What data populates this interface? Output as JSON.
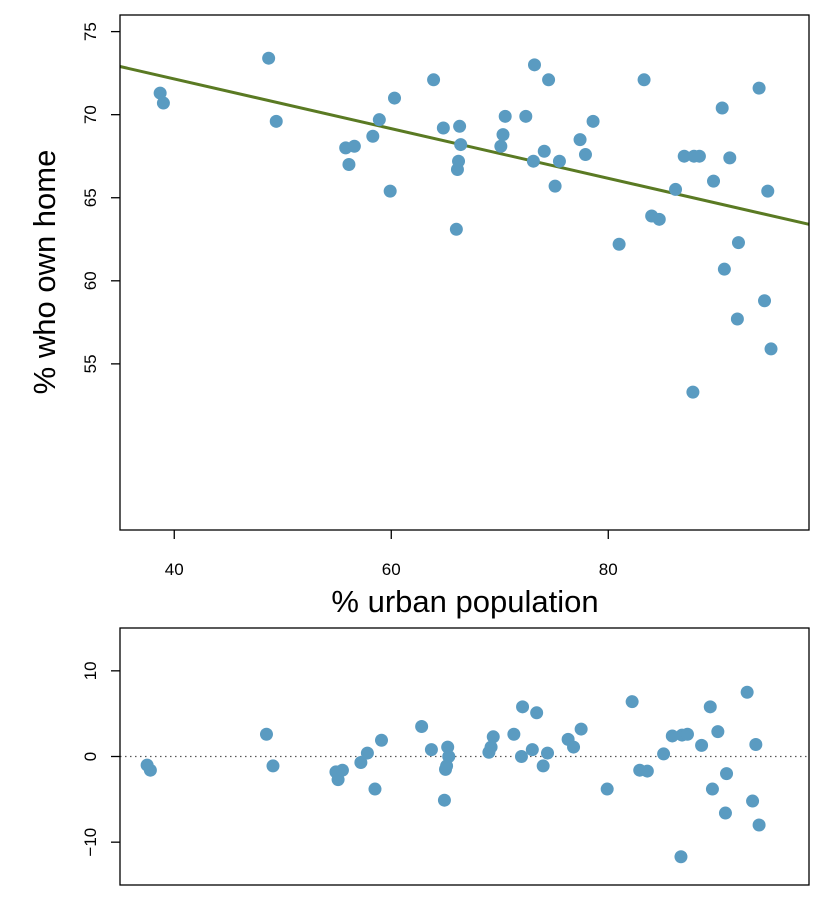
{
  "chart_data": [
    {
      "type": "scatter",
      "title": "",
      "xlabel": "% urban population",
      "ylabel": "% who own home",
      "xlim": [
        35,
        98.5
      ],
      "ylim": [
        45,
        76
      ],
      "xticks": [
        "40",
        "60",
        "80"
      ],
      "yticks": [
        "55",
        "60",
        "65",
        "70",
        "75"
      ],
      "grid": false,
      "colors": {
        "points": "#5a9bc1",
        "fit_line": "#5a7a23",
        "axes": "#000000"
      },
      "fit_line": {
        "x": [
          35,
          98.5
        ],
        "y": [
          72.9,
          63.4
        ]
      },
      "points": [
        {
          "x": 38.7,
          "y": 71.3
        },
        {
          "x": 39.0,
          "y": 70.7
        },
        {
          "x": 48.7,
          "y": 73.4
        },
        {
          "x": 49.4,
          "y": 69.6
        },
        {
          "x": 55.8,
          "y": 68.0
        },
        {
          "x": 56.1,
          "y": 67.0
        },
        {
          "x": 56.6,
          "y": 68.1
        },
        {
          "x": 58.3,
          "y": 68.7
        },
        {
          "x": 58.9,
          "y": 69.7
        },
        {
          "x": 59.9,
          "y": 65.4
        },
        {
          "x": 60.3,
          "y": 71.0
        },
        {
          "x": 63.9,
          "y": 72.1
        },
        {
          "x": 64.8,
          "y": 69.2
        },
        {
          "x": 66.0,
          "y": 63.1
        },
        {
          "x": 66.1,
          "y": 66.7
        },
        {
          "x": 66.2,
          "y": 67.2
        },
        {
          "x": 66.3,
          "y": 69.3
        },
        {
          "x": 66.4,
          "y": 68.2
        },
        {
          "x": 70.1,
          "y": 68.1
        },
        {
          "x": 70.3,
          "y": 68.8
        },
        {
          "x": 70.5,
          "y": 69.9
        },
        {
          "x": 72.4,
          "y": 69.9
        },
        {
          "x": 73.1,
          "y": 67.2
        },
        {
          "x": 73.2,
          "y": 73.0
        },
        {
          "x": 74.1,
          "y": 67.8
        },
        {
          "x": 74.5,
          "y": 72.1
        },
        {
          "x": 75.1,
          "y": 65.7
        },
        {
          "x": 75.5,
          "y": 67.2
        },
        {
          "x": 77.4,
          "y": 68.5
        },
        {
          "x": 77.9,
          "y": 67.6
        },
        {
          "x": 78.6,
          "y": 69.6
        },
        {
          "x": 81.0,
          "y": 62.2
        },
        {
          "x": 83.3,
          "y": 72.1
        },
        {
          "x": 84.0,
          "y": 63.9
        },
        {
          "x": 84.7,
          "y": 63.7
        },
        {
          "x": 86.2,
          "y": 65.5
        },
        {
          "x": 87.0,
          "y": 67.5
        },
        {
          "x": 87.8,
          "y": 53.3
        },
        {
          "x": 87.9,
          "y": 67.5
        },
        {
          "x": 88.4,
          "y": 67.5
        },
        {
          "x": 89.7,
          "y": 66.0
        },
        {
          "x": 90.5,
          "y": 70.4
        },
        {
          "x": 90.7,
          "y": 60.7
        },
        {
          "x": 91.2,
          "y": 67.4
        },
        {
          "x": 91.9,
          "y": 57.7
        },
        {
          "x": 92.0,
          "y": 62.3
        },
        {
          "x": 93.9,
          "y": 71.6
        },
        {
          "x": 94.4,
          "y": 58.8
        },
        {
          "x": 94.7,
          "y": 65.4
        },
        {
          "x": 95.0,
          "y": 55.9
        }
      ]
    },
    {
      "type": "scatter",
      "title": "",
      "xlabel": "",
      "ylabel": "",
      "xlim": [
        35,
        98.5
      ],
      "ylim": [
        -15,
        15
      ],
      "yticks": [
        "−10",
        "0",
        "10"
      ],
      "grid": false,
      "reference_line": {
        "y": 0,
        "style": "dotted"
      },
      "colors": {
        "points": "#5a9bc1",
        "reference_line": "#555555",
        "axes": "#000000"
      },
      "points": [
        {
          "x": 37.5,
          "y": -1.0
        },
        {
          "x": 37.8,
          "y": -1.6
        },
        {
          "x": 48.5,
          "y": 2.6
        },
        {
          "x": 49.1,
          "y": -1.1
        },
        {
          "x": 54.9,
          "y": -1.8
        },
        {
          "x": 55.1,
          "y": -2.7
        },
        {
          "x": 55.5,
          "y": -1.6
        },
        {
          "x": 57.2,
          "y": -0.7
        },
        {
          "x": 57.8,
          "y": 0.4
        },
        {
          "x": 58.5,
          "y": -3.8
        },
        {
          "x": 59.1,
          "y": 1.9
        },
        {
          "x": 62.8,
          "y": 3.5
        },
        {
          "x": 63.7,
          "y": 0.8
        },
        {
          "x": 64.9,
          "y": -5.1
        },
        {
          "x": 65.0,
          "y": -1.5
        },
        {
          "x": 65.1,
          "y": -1.1
        },
        {
          "x": 65.2,
          "y": 1.1
        },
        {
          "x": 65.3,
          "y": 0.0
        },
        {
          "x": 69.0,
          "y": 0.5
        },
        {
          "x": 69.2,
          "y": 1.1
        },
        {
          "x": 69.4,
          "y": 2.3
        },
        {
          "x": 71.3,
          "y": 2.6
        },
        {
          "x": 72.0,
          "y": 0.0
        },
        {
          "x": 72.1,
          "y": 5.8
        },
        {
          "x": 73.0,
          "y": 0.8
        },
        {
          "x": 73.4,
          "y": 5.1
        },
        {
          "x": 74.0,
          "y": -1.1
        },
        {
          "x": 74.4,
          "y": 0.4
        },
        {
          "x": 76.3,
          "y": 2.0
        },
        {
          "x": 76.8,
          "y": 1.1
        },
        {
          "x": 77.5,
          "y": 3.2
        },
        {
          "x": 79.9,
          "y": -3.8
        },
        {
          "x": 82.2,
          "y": 6.4
        },
        {
          "x": 82.9,
          "y": -1.6
        },
        {
          "x": 83.6,
          "y": -1.7
        },
        {
          "x": 85.1,
          "y": 0.3
        },
        {
          "x": 85.9,
          "y": 2.4
        },
        {
          "x": 86.7,
          "y": -11.7
        },
        {
          "x": 86.8,
          "y": 2.5
        },
        {
          "x": 87.3,
          "y": 2.6
        },
        {
          "x": 88.6,
          "y": 1.3
        },
        {
          "x": 89.4,
          "y": 5.8
        },
        {
          "x": 89.6,
          "y": -3.8
        },
        {
          "x": 90.1,
          "y": 2.9
        },
        {
          "x": 90.8,
          "y": -6.6
        },
        {
          "x": 90.9,
          "y": -2.0
        },
        {
          "x": 92.8,
          "y": 7.5
        },
        {
          "x": 93.3,
          "y": -5.2
        },
        {
          "x": 93.6,
          "y": 1.4
        },
        {
          "x": 93.9,
          "y": -8.0
        }
      ]
    }
  ]
}
